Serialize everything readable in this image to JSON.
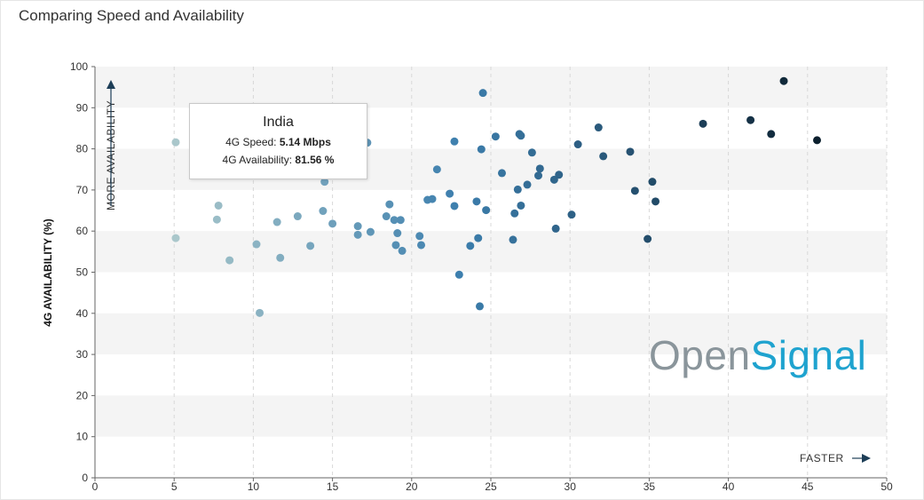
{
  "header": {
    "title": "Comparing Speed and Availability"
  },
  "brand": {
    "part1": "Open",
    "part2": "Signal"
  },
  "tooltip": {
    "title": "India",
    "speed_label": "4G Speed:",
    "speed_value": "5.14 Mbps",
    "avail_label": "4G Availability:",
    "avail_value": "81.56 %"
  },
  "chart_data": {
    "type": "scatter",
    "title": "Comparing Speed and Availability",
    "xlabel": "",
    "ylabel": "4G AVAILABILITY (%)",
    "xlim": [
      0,
      50
    ],
    "ylim": [
      0,
      100
    ],
    "x_ticks": [
      "0",
      "5",
      "10",
      "15",
      "20",
      "25",
      "30",
      "35",
      "40",
      "45",
      "50"
    ],
    "y_ticks": [
      "0",
      "10",
      "20",
      "30",
      "40",
      "50",
      "60",
      "70",
      "80",
      "90",
      "100"
    ],
    "annotations": {
      "x_direction": "FASTER",
      "y_direction": "MORE AVAILABILITY"
    },
    "grid": "alternating horizontal bands",
    "color_scale": [
      "#c9dcd3",
      "#3d7fae",
      "#0b1e2c"
    ],
    "points": [
      [
        5.1,
        81.6
      ],
      [
        5.1,
        58.3
      ],
      [
        7.7,
        62.8
      ],
      [
        7.8,
        66.2
      ],
      [
        8.5,
        52.9
      ],
      [
        10.2,
        56.8
      ],
      [
        10.4,
        40.1
      ],
      [
        11.5,
        62.2
      ],
      [
        11.7,
        53.5
      ],
      [
        12.8,
        63.6
      ],
      [
        13.6,
        56.4
      ],
      [
        14.4,
        64.9
      ],
      [
        14.5,
        72.0
      ],
      [
        15.0,
        61.8
      ],
      [
        16.6,
        61.2
      ],
      [
        16.6,
        59.1
      ],
      [
        17.2,
        81.5
      ],
      [
        17.4,
        59.8
      ],
      [
        18.4,
        63.6
      ],
      [
        18.6,
        66.5
      ],
      [
        18.9,
        62.7
      ],
      [
        19.0,
        56.6
      ],
      [
        19.1,
        59.5
      ],
      [
        19.3,
        62.7
      ],
      [
        19.4,
        55.2
      ],
      [
        20.5,
        58.8
      ],
      [
        20.6,
        56.6
      ],
      [
        21.0,
        67.6
      ],
      [
        21.3,
        67.8
      ],
      [
        21.6,
        75.0
      ],
      [
        22.4,
        69.1
      ],
      [
        22.7,
        81.8
      ],
      [
        22.7,
        66.1
      ],
      [
        23.0,
        49.4
      ],
      [
        23.7,
        56.4
      ],
      [
        24.1,
        67.2
      ],
      [
        24.2,
        58.3
      ],
      [
        24.3,
        41.7
      ],
      [
        24.4,
        79.9
      ],
      [
        24.5,
        93.6
      ],
      [
        24.7,
        65.1
      ],
      [
        25.3,
        83.0
      ],
      [
        25.7,
        74.1
      ],
      [
        26.4,
        57.9
      ],
      [
        26.5,
        64.3
      ],
      [
        26.7,
        70.1
      ],
      [
        26.8,
        83.6
      ],
      [
        26.9,
        83.2
      ],
      [
        26.9,
        66.2
      ],
      [
        27.3,
        71.3
      ],
      [
        27.6,
        79.1
      ],
      [
        28.0,
        73.5
      ],
      [
        28.1,
        75.2
      ],
      [
        29.0,
        72.5
      ],
      [
        29.1,
        60.6
      ],
      [
        29.3,
        73.7
      ],
      [
        30.1,
        64.0
      ],
      [
        30.5,
        81.1
      ],
      [
        31.8,
        85.2
      ],
      [
        32.1,
        78.2
      ],
      [
        33.8,
        79.3
      ],
      [
        34.1,
        69.8
      ],
      [
        34.9,
        58.1
      ],
      [
        35.2,
        72.0
      ],
      [
        35.4,
        67.2
      ],
      [
        38.4,
        86.1
      ],
      [
        41.4,
        87.0
      ],
      [
        42.7,
        83.6
      ],
      [
        43.5,
        96.5
      ],
      [
        45.6,
        82.1
      ]
    ]
  }
}
